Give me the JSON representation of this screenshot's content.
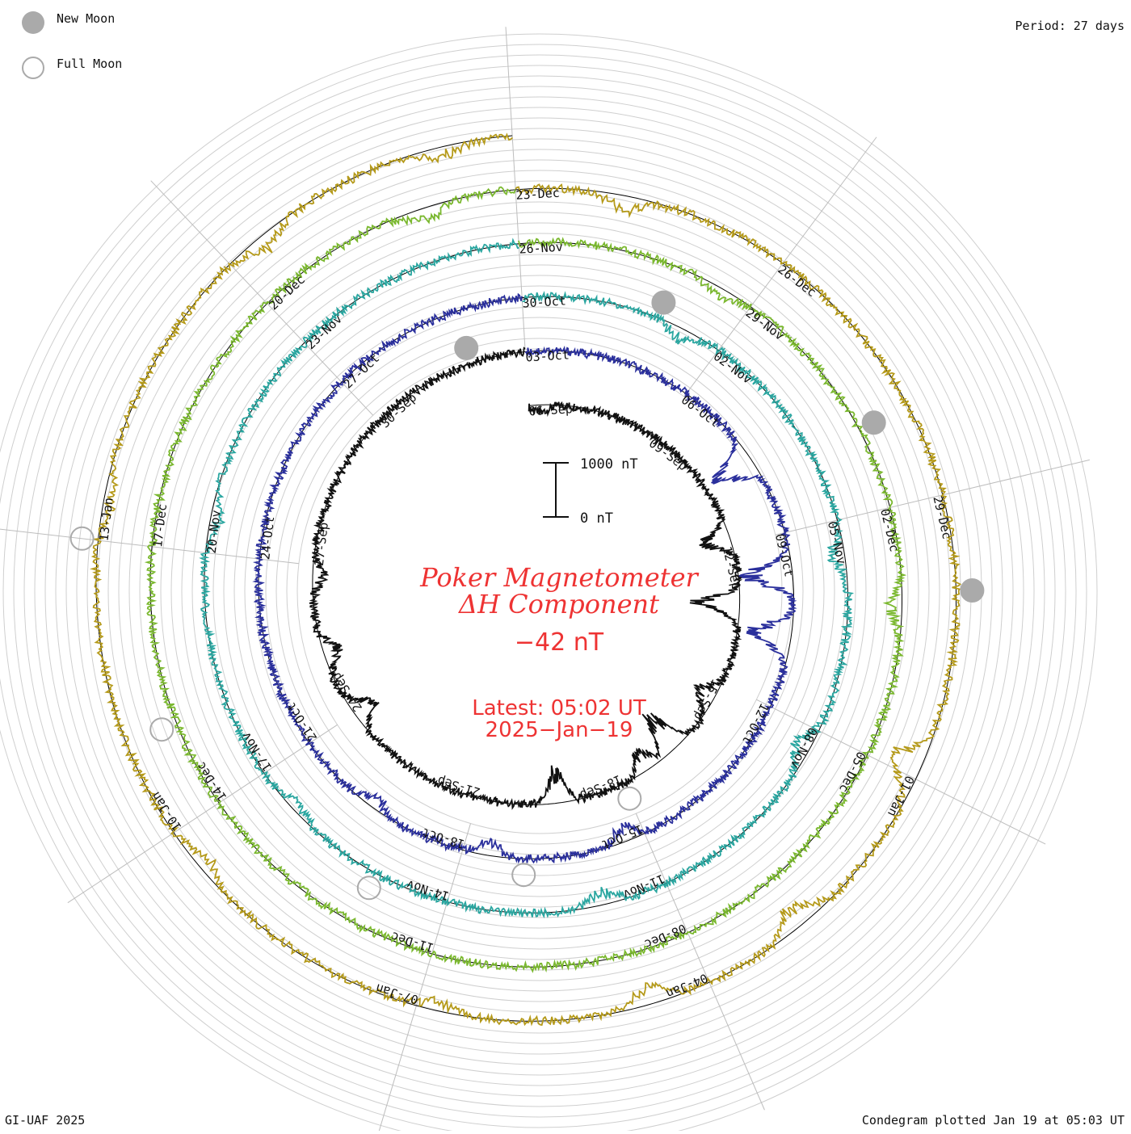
{
  "legend": {
    "new_moon_label": "New Moon",
    "full_moon_label": "Full Moon",
    "new_moon_color": "#aaaaaa",
    "full_moon_color": "#aaaaaa"
  },
  "period_label": "Period: 27 days",
  "credit": "GI-UAF 2025",
  "plotted_label": "Condegram plotted Jan 19 at 05:03 UT",
  "center": {
    "title_line1": "Poker Magnetometer",
    "title_line2": "ΔH Component",
    "value": "−42 nT",
    "latest_line1": "Latest: 05:02 UT",
    "latest_line2": "2025−Jan−19",
    "text_color": "#ee3333"
  },
  "scale_bar": {
    "top_label": "1000 nT",
    "bottom_label": "0 nT",
    "nT": 1000
  },
  "chart_data": {
    "type": "line",
    "projection": "spiral-condegram",
    "period_days": 27,
    "x_unit": "date",
    "y_unit": "nT",
    "grid": true,
    "series": [
      {
        "start": "2024-09-06",
        "color": "#111111",
        "date_labels": [
          {
            "text": "06-Sep",
            "day": 0
          },
          {
            "text": "09-Sep",
            "day": 3
          },
          {
            "text": "12-Sep",
            "day": 6
          },
          {
            "text": "15-Sep",
            "day": 9
          },
          {
            "text": "18-Sep",
            "day": 12
          },
          {
            "text": "21-Sep",
            "day": 15
          },
          {
            "text": "24-Sep",
            "day": 18
          },
          {
            "text": "27-Sep",
            "day": 21
          },
          {
            "text": "30-Sep",
            "day": 24
          }
        ],
        "disturbances": [
          {
            "day": 0.3,
            "nT": -180
          },
          {
            "day": 5.8,
            "nT": -650
          },
          {
            "day": 7.3,
            "nT": -900
          },
          {
            "day": 9.4,
            "nT": -450
          },
          {
            "day": 10.7,
            "nT": -950
          },
          {
            "day": 11.4,
            "nT": -500
          },
          {
            "day": 13.4,
            "nT": -700
          },
          {
            "day": 18.0,
            "nT": -550
          },
          {
            "day": 19.3,
            "nT": -350
          },
          {
            "day": 20.8,
            "nT": -250
          }
        ]
      },
      {
        "start": "2024-10-03",
        "color": "#2a2f9c",
        "date_labels": [
          {
            "text": "03-Oct",
            "day": 0
          },
          {
            "text": "06-Oct",
            "day": 3
          },
          {
            "text": "09-Oct",
            "day": 6
          },
          {
            "text": "12-Oct",
            "day": 9
          },
          {
            "text": "15-Oct",
            "day": 12
          },
          {
            "text": "18-Oct",
            "day": 15
          },
          {
            "text": "21-Oct",
            "day": 18
          },
          {
            "text": "24-Oct",
            "day": 21
          },
          {
            "text": "27-Oct",
            "day": 24
          }
        ],
        "disturbances": [
          {
            "day": 4.6,
            "nT": -900
          },
          {
            "day": 6.7,
            "nT": -1050
          },
          {
            "day": 7.8,
            "nT": -900
          },
          {
            "day": 12.3,
            "nT": -350
          },
          {
            "day": 14.6,
            "nT": -300
          },
          {
            "day": 16.6,
            "nT": -250
          }
        ]
      },
      {
        "start": "2024-10-30",
        "color": "#2aa6a0",
        "date_labels": [
          {
            "text": "30-Oct",
            "day": 0
          },
          {
            "text": "02-Nov",
            "day": 3
          },
          {
            "text": "05-Nov",
            "day": 6
          },
          {
            "text": "08-Nov",
            "day": 9
          },
          {
            "text": "11-Nov",
            "day": 12
          },
          {
            "text": "14-Nov",
            "day": 15
          },
          {
            "text": "17-Nov",
            "day": 18
          },
          {
            "text": "20-Nov",
            "day": 21
          },
          {
            "text": "23-Nov",
            "day": 24
          }
        ],
        "disturbances": [
          {
            "day": 2.4,
            "nT": -250
          },
          {
            "day": 6.5,
            "nT": -300
          },
          {
            "day": 9.3,
            "nT": -350
          },
          {
            "day": 12.9,
            "nT": -300
          },
          {
            "day": 17.4,
            "nT": -200
          },
          {
            "day": 21.5,
            "nT": -250
          }
        ]
      },
      {
        "start": "2024-11-26",
        "color": "#7ab82e",
        "date_labels": [
          {
            "text": "26-Nov",
            "day": 0
          },
          {
            "text": "29-Nov",
            "day": 3
          },
          {
            "text": "02-Dec",
            "day": 6
          },
          {
            "text": "05-Dec",
            "day": 9
          },
          {
            "text": "08-Dec",
            "day": 12
          },
          {
            "text": "11-Dec",
            "day": 15
          },
          {
            "text": "14-Dec",
            "day": 18
          },
          {
            "text": "17-Dec",
            "day": 21
          },
          {
            "text": "20-Dec",
            "day": 24
          }
        ],
        "disturbances": [
          {
            "day": 2.6,
            "nT": -200
          },
          {
            "day": 7.2,
            "nT": -250
          },
          {
            "day": 26.0,
            "nT": -300
          }
        ]
      },
      {
        "start": "2024-12-23",
        "color": "#b59a1a",
        "date_labels": [
          {
            "text": "23-Dec",
            "day": 0
          },
          {
            "text": "26-Dec",
            "day": 3
          },
          {
            "text": "29-Dec",
            "day": 6
          },
          {
            "text": "01-Jan",
            "day": 9
          },
          {
            "text": "04-Jan",
            "day": 12
          },
          {
            "text": "07-Jan",
            "day": 15
          },
          {
            "text": "10-Jan",
            "day": 18
          },
          {
            "text": "13-Jan",
            "day": 21
          }
        ],
        "disturbances": [
          {
            "day": 1.2,
            "nT": -350
          },
          {
            "day": 8.9,
            "nT": -700
          },
          {
            "day": 10.9,
            "nT": -450
          },
          {
            "day": 12.6,
            "nT": -400
          },
          {
            "day": 14.8,
            "nT": -200
          },
          {
            "day": 17.6,
            "nT": -250
          },
          {
            "day": 21.4,
            "nT": -200
          },
          {
            "day": 24.4,
            "nT": -300
          },
          {
            "day": 26.3,
            "nT": -250
          }
        ]
      }
    ],
    "new_moons": [
      "2024-10-02",
      "2024-11-01",
      "2024-12-01",
      "2024-12-30"
    ],
    "full_moons": [
      "2024-09-18",
      "2024-10-17",
      "2024-11-15",
      "2024-12-15",
      "2025-01-13"
    ],
    "latest": "2025-01-19T05:02"
  }
}
